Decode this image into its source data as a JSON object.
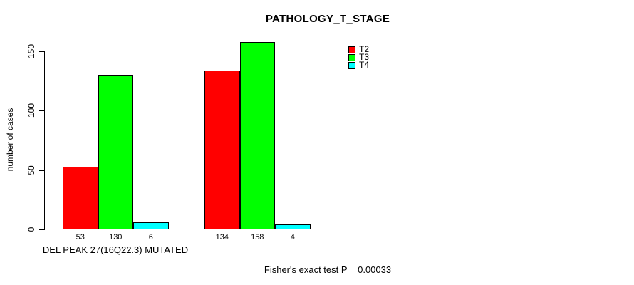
{
  "chart": {
    "title": "PATHOLOGY_T_STAGE",
    "ylabel": "number of cases",
    "x_group_label": "DEL PEAK 27(16Q22.3) MUTATED",
    "footnote": "Fisher's exact test P = 0.00033",
    "background_color": "#FFFFFF",
    "axis_color": "#000000"
  },
  "chart_data": {
    "type": "bar",
    "title": "PATHOLOGY_T_STAGE",
    "xlabel": "",
    "ylabel": "number of cases",
    "ylim": [
      0,
      150
    ],
    "yticks": [
      0,
      50,
      100,
      150
    ],
    "categories": [
      "DEL PEAK 27(16Q22.3) MUTATED",
      ""
    ],
    "series": [
      {
        "name": "T2",
        "color": "#FF0000",
        "values": [
          53,
          134
        ]
      },
      {
        "name": "T3",
        "color": "#00FF00",
        "values": [
          130,
          158
        ]
      },
      {
        "name": "T4",
        "color": "#00FFFF",
        "values": [
          6,
          4
        ]
      }
    ],
    "bar_value_labels": [
      [
        53,
        130,
        6
      ],
      [
        134,
        158,
        4
      ]
    ],
    "legend_position": "top-right",
    "grid": false,
    "annotations": [
      "Fisher's exact test P = 0.00033"
    ]
  }
}
